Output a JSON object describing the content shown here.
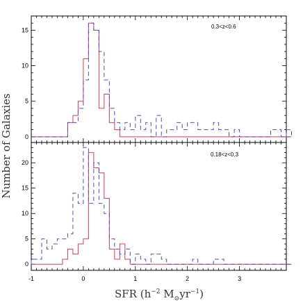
{
  "chart_data": {
    "type": "histogram",
    "ylabel": "Number of Galaxies",
    "xlabel_parts": {
      "main": "SFR (h",
      "exp1": "−2",
      "mid": " M",
      "sun": "⊙",
      "yr": "yr",
      "exp2": "−1",
      "end": ")"
    },
    "colors": {
      "solid": "#e8394f",
      "dashed": "#4a4ae0",
      "frame": "#000000"
    },
    "xlim": [
      -1,
      3.9
    ],
    "xticks": [
      "-1",
      "0",
      "1",
      "2",
      "3"
    ],
    "panels": [
      {
        "annotation": "0.3<z<0.6",
        "ylim": [
          -0.8,
          17
        ],
        "yticks": [
          "0",
          "5",
          "10",
          "15"
        ],
        "bin_start": -1.0,
        "bin_width": 0.1,
        "series": [
          {
            "style": "solid",
            "values": [
              0,
              0,
              0,
              0,
              0,
              0,
              0,
              2,
              3,
              5,
              11,
              16,
              15,
              4,
              6,
              2,
              1,
              0,
              0,
              0,
              0,
              0,
              0,
              0,
              0,
              0,
              0,
              0,
              0,
              0,
              0,
              0,
              0,
              0,
              0,
              0,
              0,
              0,
              0,
              0,
              0,
              0,
              0,
              0,
              0,
              0,
              0,
              0,
              0,
              0
            ]
          },
          {
            "style": "dashed",
            "values": [
              0,
              0,
              0,
              0,
              0,
              0,
              0,
              2,
              2,
              4,
              8,
              16,
              15,
              12,
              8,
              4,
              2,
              1,
              2,
              1,
              3,
              1,
              2,
              0,
              3,
              0,
              1,
              1,
              2,
              1,
              2,
              2,
              1,
              1,
              1,
              2,
              1,
              1,
              0,
              1,
              0,
              0,
              0,
              0,
              0,
              0,
              1,
              1,
              0,
              1
            ]
          }
        ]
      },
      {
        "annotation": "0.18<z<0.3",
        "ylim": [
          -1.2,
          24
        ],
        "yticks": [
          "0",
          "5",
          "10",
          "15",
          "20"
        ],
        "bin_start": -1.0,
        "bin_width": 0.1,
        "series": [
          {
            "style": "solid",
            "values": [
              0,
              0,
              0,
              0,
              0,
              0,
              1,
              3,
              2,
              4,
              5,
              22,
              19,
              18,
              13,
              3,
              1,
              4,
              1,
              0,
              0,
              0,
              0,
              0,
              0,
              0,
              0,
              0,
              0,
              0,
              0,
              0,
              0,
              0,
              0,
              0,
              0,
              0,
              0,
              0,
              0,
              0,
              0,
              0,
              0,
              0,
              0,
              0,
              0,
              0
            ]
          },
          {
            "style": "dashed",
            "values": [
              1,
              1,
              5,
              3,
              4,
              5,
              5,
              6,
              14,
              12,
              23,
              12,
              20,
              12,
              10,
              5,
              3,
              2,
              3,
              0,
              2,
              1,
              0,
              2,
              2,
              1,
              0,
              0,
              0,
              0,
              0,
              1,
              0,
              0,
              0,
              1,
              1,
              0,
              0,
              0,
              0,
              0,
              0,
              0,
              0,
              0,
              0,
              0,
              0,
              0
            ]
          }
        ]
      }
    ]
  }
}
